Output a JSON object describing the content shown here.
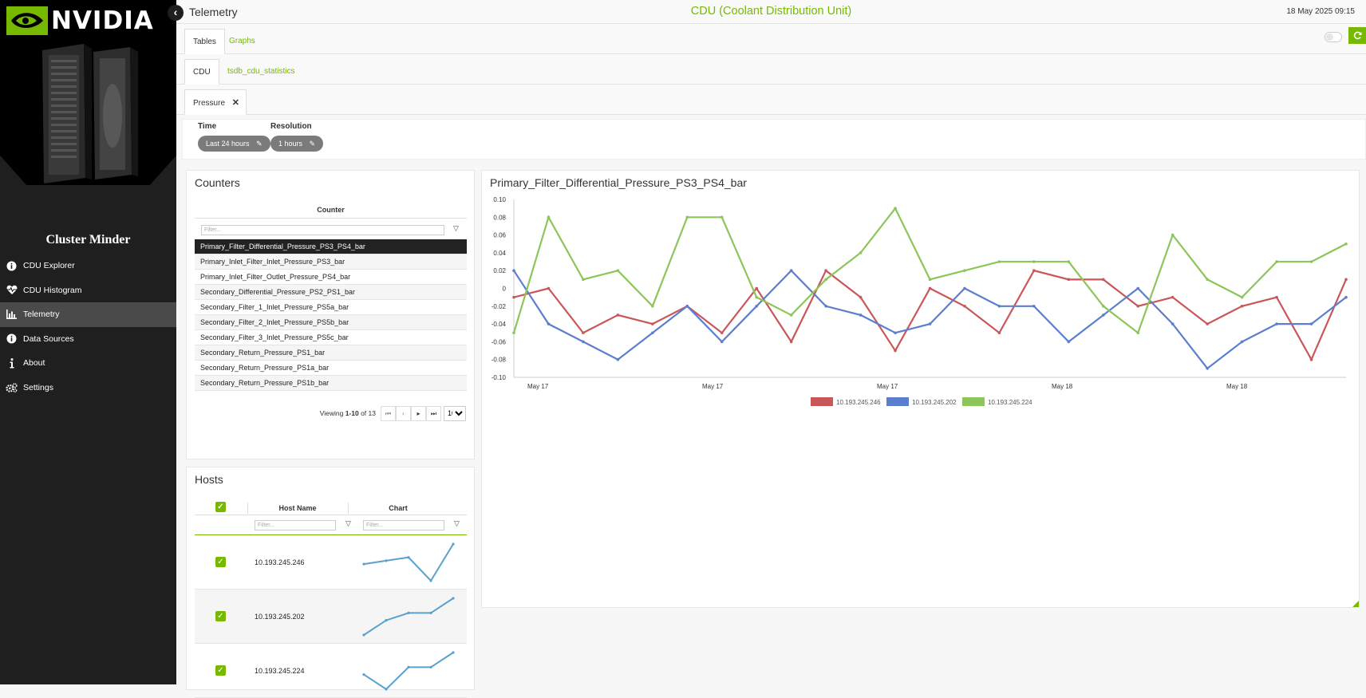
{
  "brand": {
    "wordmark": "NVIDIA",
    "app_name": "Cluster Minder"
  },
  "nav": [
    {
      "label": "CDU Explorer",
      "icon": "info-circle-icon"
    },
    {
      "label": "CDU Histogram",
      "icon": "heart-pulse-icon"
    },
    {
      "label": "Telemetry",
      "icon": "bar-chart-icon",
      "active": true
    },
    {
      "label": "Data Sources",
      "icon": "info-circle-icon"
    },
    {
      "label": "About",
      "icon": "info-icon"
    },
    {
      "label": "Settings",
      "icon": "gears-icon"
    }
  ],
  "header": {
    "title": "Telemetry",
    "center_title": "CDU (Coolant Distribution Unit)",
    "datetime": "18 May 2025 09:15"
  },
  "tabs": {
    "tables": "Tables",
    "graphs": "Graphs"
  },
  "subtabs": {
    "cdu": "CDU",
    "stats": "tsdb_cdu_statistics"
  },
  "filter_chip": {
    "label": "Pressure"
  },
  "filters": {
    "time_label": "Time",
    "time_value": "Last 24 hours",
    "resolution_label": "Resolution",
    "resolution_value": "1 hours"
  },
  "counters": {
    "title": "Counters",
    "column_header": "Counter",
    "filter_placeholder": "Filter...",
    "rows": [
      "Primary_Filter_Differential_Pressure_PS3_PS4_bar",
      "Primary_Inlet_Filter_Inlet_Pressure_PS3_bar",
      "Primary_Inlet_Filter_Outlet_Pressure_PS4_bar",
      "Secondary_Differential_Pressure_PS2_PS1_bar",
      "Secondary_Filter_1_Inlet_Pressure_PS5a_bar",
      "Secondary_Filter_2_Inlet_Pressure_PS5b_bar",
      "Secondary_Filter_3_Inlet_Pressure_PS5c_bar",
      "Secondary_Return_Pressure_PS1_bar",
      "Secondary_Return_Pressure_PS1a_bar",
      "Secondary_Return_Pressure_PS1b_bar"
    ],
    "selected_index": 0,
    "pager_prefix": "Viewing ",
    "pager_range": "1-10",
    "pager_suffix": " of 13",
    "page_size": "10"
  },
  "hosts": {
    "title": "Hosts",
    "col_host": "Host Name",
    "col_chart": "Chart",
    "filter_placeholder": "Filter...",
    "rows": [
      {
        "ip": "10.193.245.246",
        "spark": [
          -0.01,
          0.0,
          0.01,
          -0.06,
          0.05
        ]
      },
      {
        "ip": "10.193.245.202",
        "spark": [
          -0.05,
          -0.03,
          -0.02,
          -0.02,
          0.0
        ]
      },
      {
        "ip": "10.193.245.224",
        "spark": [
          -0.02,
          -0.04,
          -0.01,
          -0.01,
          0.01
        ]
      }
    ]
  },
  "chart_data": {
    "type": "line",
    "title": "Primary_Filter_Differential_Pressure_PS3_PS4_bar",
    "ylim": [
      -0.1,
      0.1
    ],
    "yticks": [
      "0.10",
      "0.08",
      "0.06",
      "0.04",
      "0.02",
      "0",
      "-0.02",
      "-0.04",
      "-0.06",
      "-0.08",
      "-0.10"
    ],
    "xtick_labels": [
      "May 17",
      "May 17",
      "May 17",
      "May 18",
      "May 18"
    ],
    "grid": false,
    "legend": "bottom",
    "series": [
      {
        "name": "10.193.245.246",
        "color": "#c9575a",
        "values": [
          -0.01,
          0.0,
          -0.05,
          -0.03,
          -0.04,
          -0.02,
          -0.05,
          0.0,
          -0.06,
          0.02,
          -0.01,
          -0.07,
          0.0,
          -0.02,
          -0.05,
          0.02,
          0.01,
          0.01,
          -0.02,
          -0.01,
          -0.04,
          -0.02,
          -0.01,
          -0.08,
          0.01
        ]
      },
      {
        "name": "10.193.245.202",
        "color": "#5b7fce",
        "values": [
          0.02,
          -0.04,
          -0.06,
          -0.08,
          -0.05,
          -0.02,
          -0.06,
          -0.02,
          0.02,
          -0.02,
          -0.03,
          -0.05,
          -0.04,
          0.0,
          -0.02,
          -0.02,
          -0.06,
          -0.03,
          0.0,
          -0.04,
          -0.09,
          -0.06,
          -0.04,
          -0.04,
          -0.01
        ]
      },
      {
        "name": "10.193.245.224",
        "color": "#8dc55a",
        "values": [
          -0.05,
          0.08,
          0.01,
          0.02,
          -0.02,
          0.08,
          0.08,
          -0.01,
          -0.03,
          0.01,
          0.04,
          0.09,
          0.01,
          0.02,
          0.03,
          0.03,
          0.03,
          -0.02,
          -0.05,
          0.06,
          0.01,
          -0.01,
          0.03,
          0.03,
          0.05
        ]
      }
    ]
  }
}
